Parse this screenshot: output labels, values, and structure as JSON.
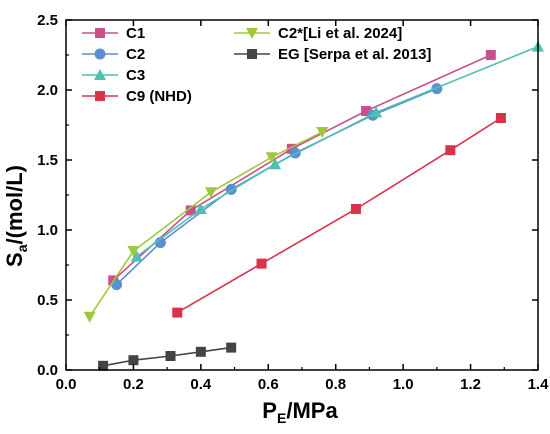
{
  "chart_data": {
    "type": "line",
    "xlabel": {
      "main": "P",
      "sub": "E",
      "rest": "/MPa"
    },
    "ylabel": {
      "main": "S",
      "sub": "a",
      "rest": "/(mol/L)"
    },
    "xlim": [
      0.0,
      1.4
    ],
    "ylim": [
      0.0,
      2.5
    ],
    "xticks": [
      "0.0",
      "0.2",
      "0.4",
      "0.6",
      "0.8",
      "1.0",
      "1.2",
      "1.4"
    ],
    "yticks": [
      "0.0",
      "0.5",
      "1.0",
      "1.5",
      "2.0",
      "2.5"
    ],
    "grid": false,
    "legend_placement": "top-left",
    "series": [
      {
        "name": "C1",
        "color": "#c8508c",
        "marker": "square",
        "x": [
          0.14,
          0.37,
          0.67,
          0.89,
          1.26
        ],
        "y": [
          0.64,
          1.14,
          1.58,
          1.85,
          2.25
        ]
      },
      {
        "name": "C2",
        "color": "#5b8fd0",
        "marker": "circle",
        "x": [
          0.15,
          0.28,
          0.49,
          0.68,
          0.91,
          1.1
        ],
        "y": [
          0.61,
          0.91,
          1.29,
          1.55,
          1.82,
          2.01
        ]
      },
      {
        "name": "C3",
        "color": "#4fc0b0",
        "marker": "triangle-up",
        "x": [
          0.21,
          0.4,
          0.62,
          0.92,
          1.4
        ],
        "y": [
          0.81,
          1.15,
          1.47,
          1.84,
          2.31
        ]
      },
      {
        "name": "C9 (NHD)",
        "color": "#d8334a",
        "marker": "square",
        "x": [
          0.33,
          0.58,
          0.86,
          1.14,
          1.29
        ],
        "y": [
          0.41,
          0.76,
          1.15,
          1.57,
          1.8
        ]
      },
      {
        "name": "C2*[Li et al. 2024]",
        "color": "#a0c83c",
        "marker": "triangle-down",
        "x": [
          0.07,
          0.2,
          0.43,
          0.61,
          0.76
        ],
        "y": [
          0.38,
          0.85,
          1.27,
          1.52,
          1.7
        ]
      },
      {
        "name": "EG [Serpa et al. 2013]",
        "color": "#444444",
        "marker": "square",
        "x": [
          0.11,
          0.2,
          0.31,
          0.4,
          0.49
        ],
        "y": [
          0.03,
          0.07,
          0.1,
          0.13,
          0.16
        ]
      }
    ]
  }
}
